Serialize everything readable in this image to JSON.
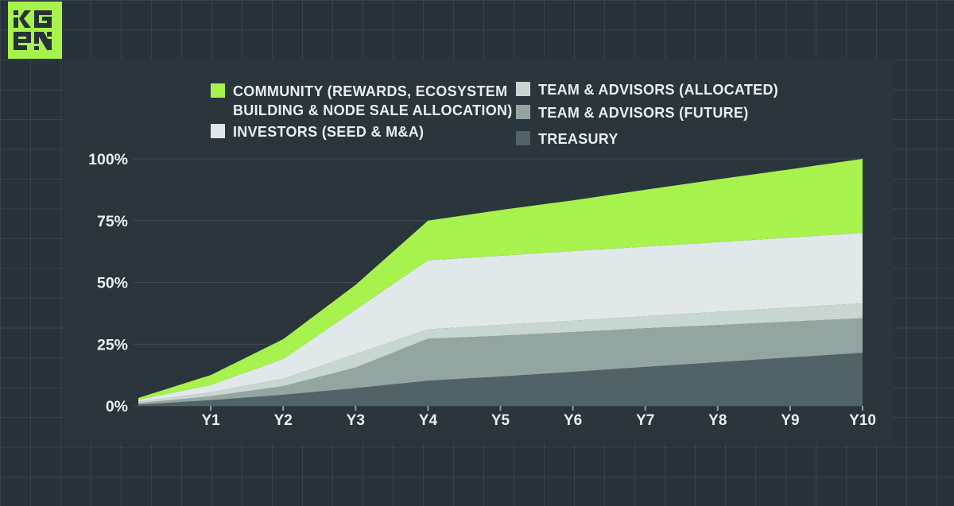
{
  "brand": {
    "name": "KGEN",
    "logo_top": "KG",
    "logo_bottom": "EN"
  },
  "colors": {
    "background": "#27323a",
    "panel": "#2a353c",
    "grid_square_line": "#3a474f",
    "plot_gridline": "#414f57",
    "axis_text": "#eaeff1",
    "tick": "#8fa0a8",
    "community": "#a7f24c",
    "investors": "#e0e8ea",
    "team_allocated": "#c8d6d2",
    "team_future": "#93a5a1",
    "treasury": "#526368"
  },
  "legend": {
    "community": {
      "key": "community",
      "line1": "COMMUNITY (REWARDS, ECOSYSTEM",
      "line2": "BUILDING & NODE SALE ALLOCATION)"
    },
    "investors": {
      "key": "investors",
      "label": "INVESTORS (SEED & M&A)"
    },
    "team_allocated": {
      "key": "team_allocated",
      "label": "TEAM & ADVISORS (ALLOCATED)"
    },
    "team_future": {
      "key": "team_future",
      "label": "TEAM & ADVISORS (FUTURE)"
    },
    "treasury": {
      "key": "treasury",
      "label": "TREASURY"
    }
  },
  "chart_data": {
    "type": "area",
    "stacked": true,
    "unit": "%",
    "ylim": [
      0,
      100
    ],
    "grid": "horizontal",
    "legend_position": "top",
    "x_labels": [
      "",
      "Y1",
      "Y2",
      "Y3",
      "Y4",
      "Y5",
      "Y6",
      "Y7",
      "Y8",
      "Y9",
      "Y10"
    ],
    "y_ticks": [
      {
        "label": "0%",
        "value": 0
      },
      {
        "label": "25%",
        "value": 25
      },
      {
        "label": "50%",
        "value": 50
      },
      {
        "label": "75%",
        "value": 75
      },
      {
        "label": "100%",
        "value": 100
      }
    ],
    "series": [
      {
        "key": "treasury",
        "name": "TREASURY",
        "values": [
          0.5,
          2.3,
          4.5,
          7.2,
          10.2,
          11.9,
          13.8,
          15.8,
          17.7,
          19.6,
          21.5
        ]
      },
      {
        "key": "team_future",
        "name": "TEAM & ADVISORS (FUTURE)",
        "values": [
          0.6,
          1.6,
          3.5,
          8.3,
          17.0,
          16.5,
          16.1,
          15.6,
          15.0,
          14.5,
          14.0
        ]
      },
      {
        "key": "team_allocated",
        "name": "TEAM & ADVISORS (ALLOCATED)",
        "values": [
          0.6,
          1.6,
          3.0,
          5.5,
          3.8,
          4.4,
          4.6,
          4.9,
          5.3,
          5.7,
          6.0
        ]
      },
      {
        "key": "investors",
        "name": "INVESTORS (SEED & M&A)",
        "values": [
          0.8,
          3.0,
          8.0,
          18.0,
          28.0,
          28.0,
          28.2,
          28.2,
          28.3,
          28.4,
          28.5
        ]
      },
      {
        "key": "community",
        "name": "COMMUNITY (REWARDS, ECOSYSTEM BUILDING & NODE SALE ALLOCATION)",
        "values": [
          0.7,
          4.0,
          8.0,
          10.0,
          16.0,
          18.5,
          20.5,
          23.0,
          25.4,
          27.6,
          30.0
        ]
      }
    ],
    "total_unlocked_by_year": [
      3.2,
      12.5,
      27,
      49,
      75,
      79.3,
      83.2,
      87.5,
      91.7,
      95.8,
      100
    ]
  }
}
